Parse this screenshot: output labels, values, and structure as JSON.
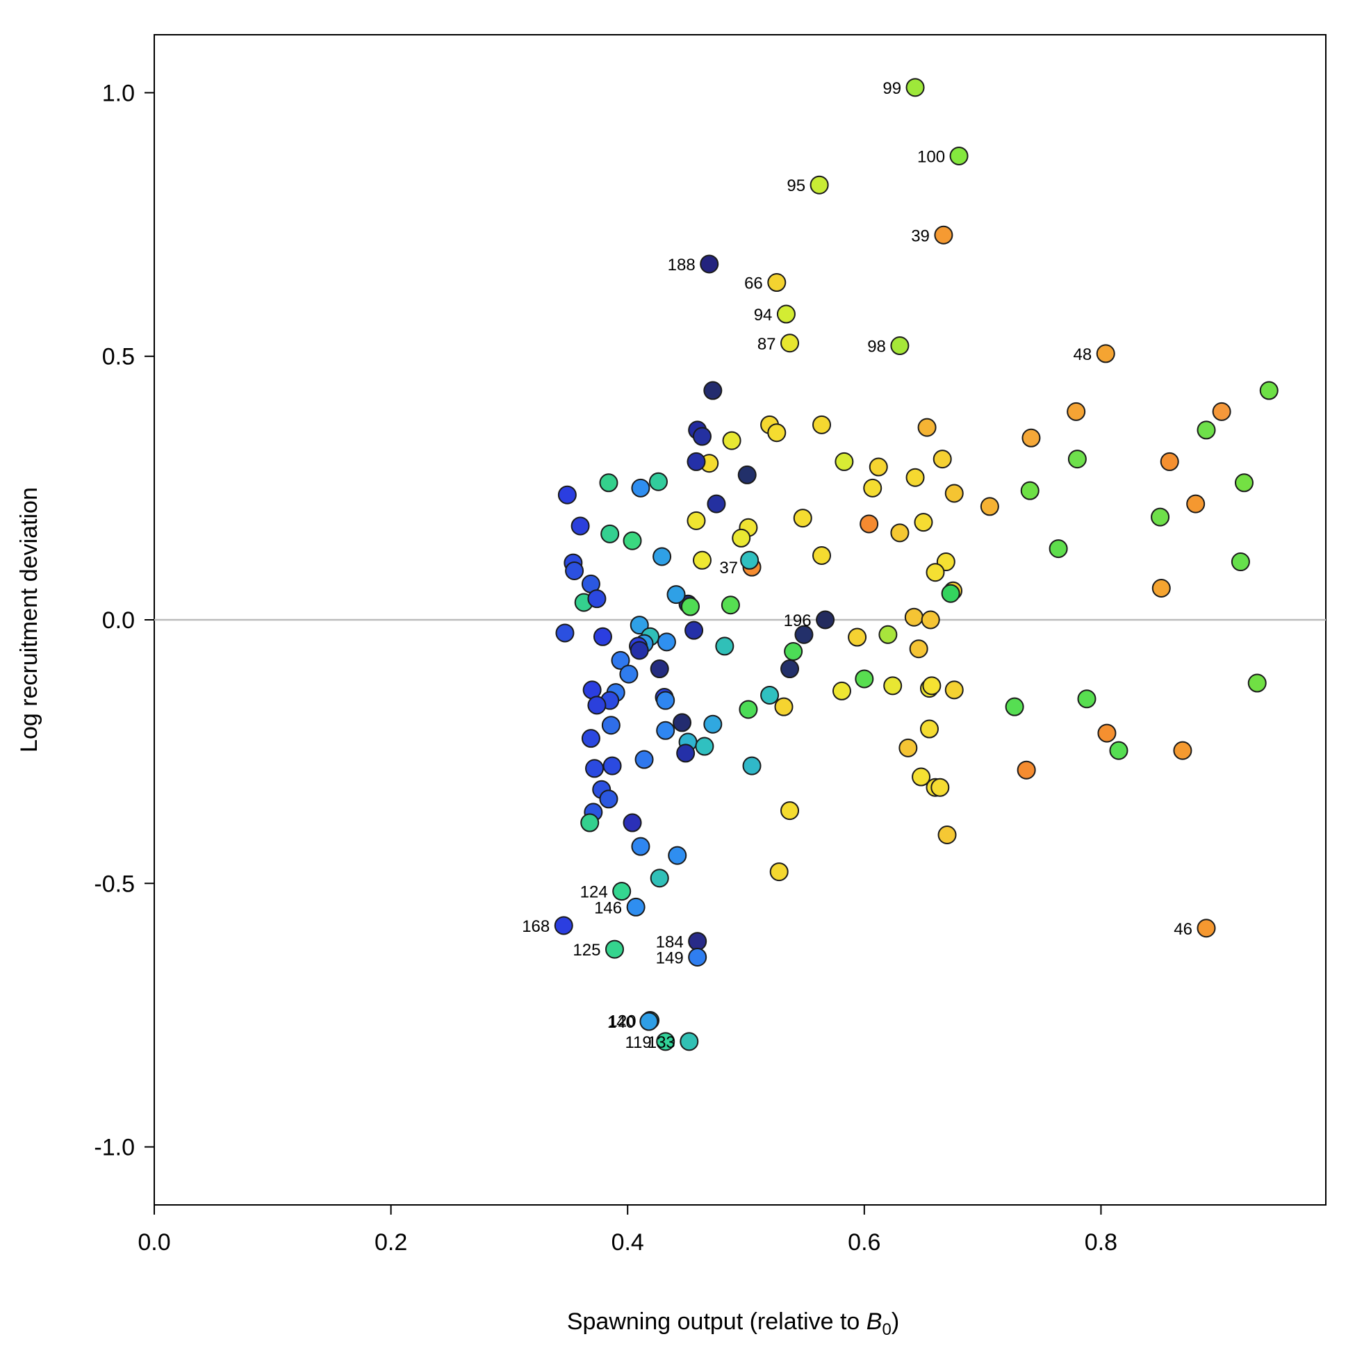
{
  "chart_data": {
    "type": "scatter",
    "xlabel": "Spawning output (relative to B0)",
    "xlabel_text": "Spawning output (relative to ",
    "xlabel_symbol": "B",
    "xlabel_subscript": "0",
    "xlabel_suffix": ")",
    "ylabel": "Log recruitment deviation",
    "xlim": [
      0,
      0.99
    ],
    "ylim": [
      -1.11,
      1.11
    ],
    "xticks": [
      {
        "value": 0.0,
        "label": "0.0"
      },
      {
        "value": 0.2,
        "label": "0.2"
      },
      {
        "value": 0.4,
        "label": "0.4"
      },
      {
        "value": 0.6,
        "label": "0.6"
      },
      {
        "value": 0.8,
        "label": "0.8"
      }
    ],
    "yticks": [
      {
        "value": 1.0,
        "label": "1.0"
      },
      {
        "value": 0.5,
        "label": "0.5"
      },
      {
        "value": 0.0,
        "label": "0.0"
      },
      {
        "value": -0.5,
        "label": "-0.5"
      },
      {
        "value": -1.0,
        "label": "-1.0"
      }
    ],
    "reference_line_y": 0,
    "reference_line_color": "#bbbbbb",
    "grid": false,
    "color_scale": "year-ordered gradient: orange (early) → yellow → green → cyan → blue → navy (late)",
    "points": [
      {
        "x": 0.643,
        "y": 1.01,
        "label": "99",
        "color": "#9ee83a"
      },
      {
        "x": 0.68,
        "y": 0.88,
        "label": "100",
        "color": "#84e83e"
      },
      {
        "x": 0.562,
        "y": 0.825,
        "label": "95",
        "color": "#c8ec35"
      },
      {
        "x": 0.667,
        "y": 0.73,
        "label": "39",
        "color": "#f59a32"
      },
      {
        "x": 0.469,
        "y": 0.675,
        "label": "188",
        "color": "#23237e"
      },
      {
        "x": 0.526,
        "y": 0.64,
        "label": "66",
        "color": "#f4d330"
      },
      {
        "x": 0.534,
        "y": 0.58,
        "label": "94",
        "color": "#d3ec33"
      },
      {
        "x": 0.537,
        "y": 0.525,
        "label": "87",
        "color": "#e8e62f"
      },
      {
        "x": 0.63,
        "y": 0.52,
        "label": "98",
        "color": "#a6e838"
      },
      {
        "x": 0.804,
        "y": 0.505,
        "label": "48",
        "color": "#f5a432"
      },
      {
        "x": 0.505,
        "y": 0.1,
        "label": "37",
        "color": "#f58c30"
      },
      {
        "x": 0.567,
        "y": 0.0,
        "label": "196",
        "color": "#232b5e"
      },
      {
        "x": 0.395,
        "y": -0.515,
        "label": "124",
        "color": "#35d690"
      },
      {
        "x": 0.407,
        "y": -0.545,
        "label": "146",
        "color": "#2f8ef0"
      },
      {
        "x": 0.346,
        "y": -0.58,
        "label": "168",
        "color": "#2b3ee0"
      },
      {
        "x": 0.459,
        "y": -0.61,
        "label": "184",
        "color": "#282b88"
      },
      {
        "x": 0.389,
        "y": -0.625,
        "label": "125",
        "color": "#35d48e"
      },
      {
        "x": 0.459,
        "y": -0.64,
        "label": "149",
        "color": "#2f7ef0"
      },
      {
        "x": 0.419,
        "y": -0.76,
        "label": "120",
        "color": "#31c2b0"
      },
      {
        "x": 0.418,
        "y": -0.762,
        "label": "140",
        "color": "#2f9ee6"
      },
      {
        "x": 0.432,
        "y": -0.8,
        "label": "119",
        "color": "#33d49a"
      },
      {
        "x": 0.452,
        "y": -0.8,
        "label": "133",
        "color": "#31c0b4"
      },
      {
        "x": 0.942,
        "y": 0.435,
        "label": "",
        "color": "#6ee046"
      },
      {
        "x": 0.902,
        "y": 0.395,
        "label": "",
        "color": "#f5983a"
      },
      {
        "x": 0.889,
        "y": 0.36,
        "label": "",
        "color": "#6ee04a"
      },
      {
        "x": 0.921,
        "y": 0.26,
        "label": "",
        "color": "#74e043"
      },
      {
        "x": 0.858,
        "y": 0.3,
        "label": "",
        "color": "#f59030"
      },
      {
        "x": 0.88,
        "y": 0.22,
        "label": "",
        "color": "#f59830"
      },
      {
        "x": 0.85,
        "y": 0.195,
        "label": "",
        "color": "#6ee04a"
      },
      {
        "x": 0.918,
        "y": 0.11,
        "label": "",
        "color": "#66e04c"
      },
      {
        "x": 0.851,
        "y": 0.06,
        "label": "",
        "color": "#f5a430"
      },
      {
        "x": 0.932,
        "y": -0.12,
        "label": "",
        "color": "#70e044"
      },
      {
        "x": 0.869,
        "y": -0.248,
        "label": "",
        "color": "#f59a30"
      },
      {
        "x": 0.889,
        "y": -0.585,
        "label": "46",
        "color": "#f59830"
      },
      {
        "x": 0.779,
        "y": 0.395,
        "label": "",
        "color": "#f5a434"
      },
      {
        "x": 0.78,
        "y": 0.305,
        "label": "",
        "color": "#6ee04c"
      },
      {
        "x": 0.741,
        "y": 0.345,
        "label": "",
        "color": "#f5a838"
      },
      {
        "x": 0.74,
        "y": 0.245,
        "label": "",
        "color": "#6ee046"
      },
      {
        "x": 0.706,
        "y": 0.215,
        "label": "",
        "color": "#f5b234"
      },
      {
        "x": 0.764,
        "y": 0.135,
        "label": "",
        "color": "#5ede4c"
      },
      {
        "x": 0.788,
        "y": -0.15,
        "label": "",
        "color": "#58de50"
      },
      {
        "x": 0.727,
        "y": -0.165,
        "label": "",
        "color": "#56de52"
      },
      {
        "x": 0.805,
        "y": -0.215,
        "label": "",
        "color": "#f59030"
      },
      {
        "x": 0.815,
        "y": -0.248,
        "label": "",
        "color": "#56de52"
      },
      {
        "x": 0.737,
        "y": -0.285,
        "label": "",
        "color": "#f58c30"
      },
      {
        "x": 0.653,
        "y": 0.365,
        "label": "",
        "color": "#f5b434"
      },
      {
        "x": 0.666,
        "y": 0.305,
        "label": "",
        "color": "#f5d032"
      },
      {
        "x": 0.676,
        "y": 0.24,
        "label": "",
        "color": "#f5c432"
      },
      {
        "x": 0.643,
        "y": 0.27,
        "label": "",
        "color": "#f5d830"
      },
      {
        "x": 0.612,
        "y": 0.29,
        "label": "",
        "color": "#f5d430"
      },
      {
        "x": 0.607,
        "y": 0.25,
        "label": "",
        "color": "#f5dc30"
      },
      {
        "x": 0.583,
        "y": 0.3,
        "label": "",
        "color": "#d8ec34"
      },
      {
        "x": 0.564,
        "y": 0.37,
        "label": "",
        "color": "#f5d830"
      },
      {
        "x": 0.604,
        "y": 0.182,
        "label": "",
        "color": "#f58a30"
      },
      {
        "x": 0.63,
        "y": 0.165,
        "label": "",
        "color": "#f5c832"
      },
      {
        "x": 0.65,
        "y": 0.185,
        "label": "",
        "color": "#f5dc32"
      },
      {
        "x": 0.669,
        "y": 0.11,
        "label": "",
        "color": "#f5e032"
      },
      {
        "x": 0.66,
        "y": 0.09,
        "label": "",
        "color": "#f5e032"
      },
      {
        "x": 0.675,
        "y": 0.055,
        "label": "",
        "color": "#f5d032"
      },
      {
        "x": 0.673,
        "y": 0.05,
        "label": "",
        "color": "#34d45e"
      },
      {
        "x": 0.642,
        "y": 0.005,
        "label": "",
        "color": "#f5c434"
      },
      {
        "x": 0.656,
        "y": 0.0,
        "label": "",
        "color": "#f5c434"
      },
      {
        "x": 0.62,
        "y": -0.028,
        "label": "",
        "color": "#a8e43c"
      },
      {
        "x": 0.594,
        "y": -0.033,
        "label": "",
        "color": "#f5d232"
      },
      {
        "x": 0.646,
        "y": -0.055,
        "label": "",
        "color": "#f5c434"
      },
      {
        "x": 0.6,
        "y": -0.112,
        "label": "",
        "color": "#58de50"
      },
      {
        "x": 0.624,
        "y": -0.125,
        "label": "",
        "color": "#e8e632"
      },
      {
        "x": 0.581,
        "y": -0.135,
        "label": "",
        "color": "#eee632"
      },
      {
        "x": 0.655,
        "y": -0.13,
        "label": "",
        "color": "#eee632"
      },
      {
        "x": 0.657,
        "y": -0.125,
        "label": "",
        "color": "#f5e232"
      },
      {
        "x": 0.676,
        "y": -0.133,
        "label": "",
        "color": "#f5d232"
      },
      {
        "x": 0.655,
        "y": -0.207,
        "label": "",
        "color": "#f5dc32"
      },
      {
        "x": 0.637,
        "y": -0.243,
        "label": "",
        "color": "#f5c434"
      },
      {
        "x": 0.648,
        "y": -0.298,
        "label": "",
        "color": "#f5e032"
      },
      {
        "x": 0.66,
        "y": -0.318,
        "label": "",
        "color": "#f5e032"
      },
      {
        "x": 0.664,
        "y": -0.318,
        "label": "",
        "color": "#f5dc32"
      },
      {
        "x": 0.67,
        "y": -0.408,
        "label": "",
        "color": "#f5c834"
      },
      {
        "x": 0.52,
        "y": 0.37,
        "label": "",
        "color": "#f5d830"
      },
      {
        "x": 0.526,
        "y": 0.355,
        "label": "",
        "color": "#f5dc30"
      },
      {
        "x": 0.488,
        "y": 0.34,
        "label": "",
        "color": "#e8e832"
      },
      {
        "x": 0.472,
        "y": 0.435,
        "label": "",
        "color": "#232c6e"
      },
      {
        "x": 0.459,
        "y": 0.36,
        "label": "",
        "color": "#232ba0"
      },
      {
        "x": 0.463,
        "y": 0.348,
        "label": "",
        "color": "#2430a0"
      },
      {
        "x": 0.469,
        "y": 0.297,
        "label": "",
        "color": "#f5dc30"
      },
      {
        "x": 0.458,
        "y": 0.3,
        "label": "",
        "color": "#2430a8"
      },
      {
        "x": 0.501,
        "y": 0.275,
        "label": "",
        "color": "#22306a"
      },
      {
        "x": 0.475,
        "y": 0.22,
        "label": "",
        "color": "#2430a0"
      },
      {
        "x": 0.458,
        "y": 0.188,
        "label": "",
        "color": "#f0e430"
      },
      {
        "x": 0.502,
        "y": 0.175,
        "label": "",
        "color": "#f0e432"
      },
      {
        "x": 0.496,
        "y": 0.155,
        "label": "",
        "color": "#eae832"
      },
      {
        "x": 0.548,
        "y": 0.193,
        "label": "",
        "color": "#f5dc30"
      },
      {
        "x": 0.564,
        "y": 0.122,
        "label": "",
        "color": "#f5dc30"
      },
      {
        "x": 0.463,
        "y": 0.113,
        "label": "",
        "color": "#eee832"
      },
      {
        "x": 0.503,
        "y": 0.113,
        "label": "",
        "color": "#30c0c0"
      },
      {
        "x": 0.487,
        "y": 0.028,
        "label": "",
        "color": "#56de52"
      },
      {
        "x": 0.451,
        "y": 0.03,
        "label": "",
        "color": "#232c70"
      },
      {
        "x": 0.453,
        "y": 0.025,
        "label": "",
        "color": "#50dc54"
      },
      {
        "x": 0.441,
        "y": 0.048,
        "label": "",
        "color": "#2fa0e6"
      },
      {
        "x": 0.456,
        "y": -0.02,
        "label": "",
        "color": "#2430a8"
      },
      {
        "x": 0.549,
        "y": -0.028,
        "label": "",
        "color": "#23306a"
      },
      {
        "x": 0.54,
        "y": -0.06,
        "label": "",
        "color": "#4cdc56"
      },
      {
        "x": 0.482,
        "y": -0.05,
        "label": "",
        "color": "#30c0b8"
      },
      {
        "x": 0.537,
        "y": -0.093,
        "label": "",
        "color": "#23306a"
      },
      {
        "x": 0.52,
        "y": -0.143,
        "label": "",
        "color": "#30c0c0"
      },
      {
        "x": 0.502,
        "y": -0.17,
        "label": "",
        "color": "#4cdc56"
      },
      {
        "x": 0.532,
        "y": -0.165,
        "label": "",
        "color": "#f5d430"
      },
      {
        "x": 0.472,
        "y": -0.198,
        "label": "",
        "color": "#30a8e0"
      },
      {
        "x": 0.451,
        "y": -0.232,
        "label": "",
        "color": "#30b4d0"
      },
      {
        "x": 0.465,
        "y": -0.24,
        "label": "",
        "color": "#30c0c0"
      },
      {
        "x": 0.449,
        "y": -0.253,
        "label": "",
        "color": "#2430a8"
      },
      {
        "x": 0.505,
        "y": -0.277,
        "label": "",
        "color": "#30b8c8"
      },
      {
        "x": 0.537,
        "y": -0.362,
        "label": "",
        "color": "#f5dc30"
      },
      {
        "x": 0.528,
        "y": -0.478,
        "label": "",
        "color": "#f5d830"
      },
      {
        "x": 0.442,
        "y": -0.447,
        "label": "",
        "color": "#2f8ef0"
      },
      {
        "x": 0.446,
        "y": -0.195,
        "label": "",
        "color": "#232c70"
      },
      {
        "x": 0.426,
        "y": 0.262,
        "label": "",
        "color": "#32cc9c"
      },
      {
        "x": 0.411,
        "y": 0.25,
        "label": "",
        "color": "#2f8ef0"
      },
      {
        "x": 0.384,
        "y": 0.26,
        "label": "",
        "color": "#34d08c"
      },
      {
        "x": 0.385,
        "y": 0.163,
        "label": "",
        "color": "#34d090"
      },
      {
        "x": 0.404,
        "y": 0.15,
        "label": "",
        "color": "#3ad880"
      },
      {
        "x": 0.429,
        "y": 0.12,
        "label": "",
        "color": "#2fa0e6"
      },
      {
        "x": 0.349,
        "y": 0.237,
        "label": "",
        "color": "#2b3ee0"
      },
      {
        "x": 0.36,
        "y": 0.178,
        "label": "",
        "color": "#2b40dc"
      },
      {
        "x": 0.354,
        "y": 0.108,
        "label": "",
        "color": "#2b4ae0"
      },
      {
        "x": 0.355,
        "y": 0.093,
        "label": "",
        "color": "#2b50e0"
      },
      {
        "x": 0.369,
        "y": 0.068,
        "label": "",
        "color": "#2b58e0"
      },
      {
        "x": 0.363,
        "y": 0.033,
        "label": "",
        "color": "#34d08e"
      },
      {
        "x": 0.374,
        "y": 0.04,
        "label": "",
        "color": "#2b48e0"
      },
      {
        "x": 0.347,
        "y": -0.025,
        "label": "",
        "color": "#2b50e0"
      },
      {
        "x": 0.379,
        "y": -0.032,
        "label": "",
        "color": "#2b3ee0"
      },
      {
        "x": 0.41,
        "y": -0.01,
        "label": "",
        "color": "#2fa0e6"
      },
      {
        "x": 0.419,
        "y": -0.032,
        "label": "",
        "color": "#30c0b8"
      },
      {
        "x": 0.414,
        "y": -0.045,
        "label": "",
        "color": "#2f9ce6"
      },
      {
        "x": 0.409,
        "y": -0.05,
        "label": "",
        "color": "#2b3ee0"
      },
      {
        "x": 0.41,
        "y": -0.058,
        "label": "",
        "color": "#2430a8"
      },
      {
        "x": 0.433,
        "y": -0.042,
        "label": "",
        "color": "#2f90f0"
      },
      {
        "x": 0.394,
        "y": -0.077,
        "label": "",
        "color": "#2f78ee"
      },
      {
        "x": 0.401,
        "y": -0.103,
        "label": "",
        "color": "#2f7cee"
      },
      {
        "x": 0.427,
        "y": -0.093,
        "label": "",
        "color": "#242c80"
      },
      {
        "x": 0.37,
        "y": -0.133,
        "label": "",
        "color": "#2b3ee0"
      },
      {
        "x": 0.39,
        "y": -0.138,
        "label": "",
        "color": "#2f78ee"
      },
      {
        "x": 0.385,
        "y": -0.153,
        "label": "",
        "color": "#2b4ae0"
      },
      {
        "x": 0.374,
        "y": -0.162,
        "label": "",
        "color": "#2b40dc"
      },
      {
        "x": 0.431,
        "y": -0.147,
        "label": "",
        "color": "#2b40dc"
      },
      {
        "x": 0.432,
        "y": -0.153,
        "label": "",
        "color": "#2f86f0"
      },
      {
        "x": 0.386,
        "y": -0.2,
        "label": "",
        "color": "#2f6ee8"
      },
      {
        "x": 0.432,
        "y": -0.21,
        "label": "",
        "color": "#2f86f0"
      },
      {
        "x": 0.369,
        "y": -0.225,
        "label": "",
        "color": "#2b48e0"
      },
      {
        "x": 0.414,
        "y": -0.265,
        "label": "",
        "color": "#2f78ee"
      },
      {
        "x": 0.372,
        "y": -0.282,
        "label": "",
        "color": "#2b4ae0"
      },
      {
        "x": 0.387,
        "y": -0.277,
        "label": "",
        "color": "#2b4ae0"
      },
      {
        "x": 0.378,
        "y": -0.322,
        "label": "",
        "color": "#2b50e0"
      },
      {
        "x": 0.384,
        "y": -0.34,
        "label": "",
        "color": "#2b58e0"
      },
      {
        "x": 0.371,
        "y": -0.365,
        "label": "",
        "color": "#2b56e0"
      },
      {
        "x": 0.368,
        "y": -0.385,
        "label": "",
        "color": "#34d08e"
      },
      {
        "x": 0.404,
        "y": -0.385,
        "label": "",
        "color": "#2b30b8"
      },
      {
        "x": 0.411,
        "y": -0.43,
        "label": "",
        "color": "#2f86f0"
      },
      {
        "x": 0.427,
        "y": -0.49,
        "label": "",
        "color": "#30c0b8"
      }
    ]
  }
}
